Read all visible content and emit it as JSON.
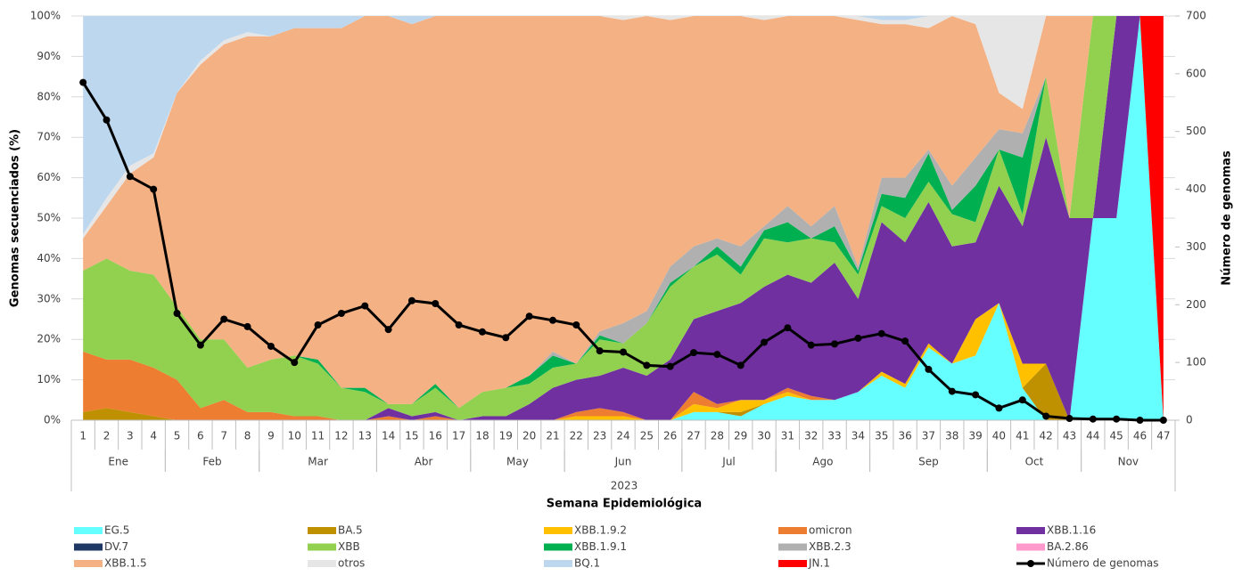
{
  "chart_data": {
    "type": "stacked-area-line",
    "y_label": "Genomas secuenciados (%)",
    "y2_label": "Número de genomas",
    "x_label": "Semana Epidemiológica",
    "x_outer_group": "2023",
    "categories": [
      "1",
      "2",
      "3",
      "4",
      "5",
      "6",
      "7",
      "8",
      "9",
      "10",
      "11",
      "12",
      "13",
      "14",
      "15",
      "16",
      "17",
      "18",
      "19",
      "20",
      "21",
      "22",
      "23",
      "24",
      "25",
      "26",
      "27",
      "28",
      "29",
      "30",
      "31",
      "32",
      "33",
      "34",
      "35",
      "36",
      "37",
      "38",
      "39",
      "40",
      "41",
      "42",
      "43",
      "44",
      "45",
      "46",
      "47"
    ],
    "x_groups": [
      "Ene",
      null,
      null,
      null,
      "Feb",
      null,
      null,
      null,
      "Mar",
      null,
      null,
      null,
      null,
      "Abr",
      null,
      null,
      null,
      "May",
      null,
      null,
      null,
      "Jun",
      null,
      null,
      null,
      null,
      "Jul",
      null,
      null,
      null,
      "Ago",
      null,
      null,
      null,
      "Sep",
      null,
      null,
      null,
      null,
      "Oct",
      null,
      null,
      null,
      "Nov",
      null,
      null,
      null
    ],
    "ylim": [
      0,
      100
    ],
    "yticks": [
      {
        "value": 0,
        "label": "0%"
      },
      {
        "value": 10,
        "label": "10%"
      },
      {
        "value": 20,
        "label": "20%"
      },
      {
        "value": 30,
        "label": "30%"
      },
      {
        "value": 40,
        "label": "40%"
      },
      {
        "value": 50,
        "label": "50%"
      },
      {
        "value": 60,
        "label": "60%"
      },
      {
        "value": 70,
        "label": "70%"
      },
      {
        "value": 80,
        "label": "80%"
      },
      {
        "value": 90,
        "label": "90%"
      },
      {
        "value": 100,
        "label": "100%"
      }
    ],
    "y2lim": [
      0,
      700
    ],
    "y2ticks": [
      0,
      100,
      200,
      300,
      400,
      500,
      600,
      700
    ],
    "series": [
      {
        "name": "EG.5",
        "color": "#66ffff",
        "values": [
          0,
          0,
          0,
          0,
          0,
          0,
          0,
          0,
          0,
          0,
          0,
          0,
          0,
          0,
          0,
          0,
          0,
          0,
          0,
          0,
          0,
          0,
          0,
          0,
          0,
          0,
          2,
          2,
          1,
          4,
          6,
          5,
          5,
          7,
          11,
          8,
          18,
          14,
          16,
          29,
          8,
          0,
          0,
          50,
          50,
          100,
          0
        ]
      },
      {
        "name": "BA.5",
        "color": "#bf9000",
        "values": [
          2,
          3,
          2,
          1,
          0,
          0,
          0,
          0,
          0,
          0,
          0,
          0,
          0,
          0,
          0,
          0,
          0,
          0,
          0,
          0,
          0,
          0,
          0,
          0,
          0,
          0,
          0,
          0,
          1,
          0,
          0,
          0,
          0,
          0,
          0,
          0,
          0,
          0,
          0,
          0,
          0,
          14,
          0,
          0,
          0,
          0,
          0
        ]
      },
      {
        "name": "XBB.1.9.2",
        "color": "#ffc000",
        "values": [
          0,
          0,
          0,
          0,
          0,
          0,
          0,
          0,
          0,
          0,
          0,
          0,
          0,
          0,
          0,
          0,
          0,
          0,
          0,
          0,
          0,
          1,
          1,
          1,
          0,
          0,
          2,
          1,
          3,
          1,
          1,
          0,
          0,
          0,
          1,
          1,
          1,
          0,
          9,
          0,
          6,
          0,
          0,
          0,
          0,
          0,
          0
        ]
      },
      {
        "name": "omicron",
        "color": "#ed7d31",
        "values": [
          15,
          12,
          13,
          12,
          10,
          3,
          5,
          2,
          2,
          1,
          1,
          0,
          0,
          1,
          0,
          1,
          0,
          0,
          0,
          0,
          0,
          1,
          2,
          1,
          0,
          0,
          3,
          1,
          0,
          0,
          1,
          1,
          0,
          0,
          0,
          0,
          0,
          0,
          0,
          0,
          0,
          0,
          0,
          0,
          0,
          0,
          0
        ]
      },
      {
        "name": "XBB.1.16",
        "color": "#7030a0",
        "values": [
          0,
          0,
          0,
          0,
          0,
          0,
          0,
          0,
          0,
          0,
          0,
          0,
          0,
          2,
          1,
          1,
          0,
          1,
          1,
          4,
          8,
          8,
          8,
          11,
          11,
          15,
          18,
          23,
          24,
          28,
          28,
          28,
          34,
          23,
          37,
          35,
          35,
          29,
          19,
          29,
          34,
          56,
          50,
          0,
          50,
          0,
          0
        ]
      },
      {
        "name": "DV.7",
        "color": "#1f3864",
        "values": [
          0,
          0,
          0,
          0,
          0,
          0,
          0,
          0,
          0,
          0,
          0,
          0,
          0,
          0,
          0,
          0,
          0,
          0,
          0,
          0,
          0,
          0,
          0,
          0,
          0,
          0,
          0,
          0,
          0,
          0,
          0,
          0,
          0,
          0,
          0,
          0,
          0,
          0,
          0,
          0,
          0,
          0,
          0,
          0,
          0,
          0,
          0
        ]
      },
      {
        "name": "XBB",
        "color": "#92d050",
        "values": [
          20,
          25,
          22,
          23,
          18,
          17,
          15,
          11,
          13,
          15,
          13,
          8,
          7,
          1,
          3,
          6,
          3,
          6,
          7,
          5,
          5,
          4,
          9,
          6,
          13,
          18,
          13,
          14,
          7,
          12,
          8,
          11,
          5,
          6,
          4,
          6,
          5,
          8,
          5,
          9,
          3,
          15,
          0,
          50,
          0,
          0,
          0
        ]
      },
      {
        "name": "XBB.1.9.1",
        "color": "#00b050",
        "values": [
          0,
          0,
          0,
          0,
          0,
          0,
          0,
          0,
          0,
          0,
          1,
          0,
          1,
          0,
          0,
          1,
          0,
          0,
          0,
          2,
          3,
          0,
          1,
          0,
          0,
          1,
          0,
          2,
          2,
          2,
          5,
          0,
          4,
          1,
          3,
          5,
          7,
          1,
          9,
          0,
          14,
          0,
          0,
          0,
          0,
          0,
          0
        ]
      },
      {
        "name": "XBB.2.3",
        "color": "#b0b0b0",
        "values": [
          0,
          0,
          0,
          0,
          0,
          0,
          0,
          0,
          0,
          0,
          0,
          0,
          0,
          0,
          0,
          0,
          0,
          0,
          0,
          0,
          1,
          0,
          1,
          5,
          3,
          4,
          5,
          2,
          5,
          1,
          4,
          3,
          5,
          1,
          4,
          5,
          1,
          6,
          7,
          5,
          6,
          0,
          0,
          0,
          0,
          0,
          0
        ]
      },
      {
        "name": "BA.2.86",
        "color": "#ff99cc",
        "values": [
          0,
          0,
          0,
          0,
          0,
          0,
          0,
          0,
          0,
          0,
          0,
          0,
          0,
          0,
          0,
          0,
          0,
          0,
          0,
          0,
          0,
          0,
          0,
          0,
          0,
          0,
          0,
          0,
          0,
          0,
          0,
          0,
          0,
          0,
          0,
          0,
          0,
          0,
          0,
          0,
          0,
          0,
          0,
          0,
          0,
          0,
          0
        ]
      },
      {
        "name": "XBB.1.5",
        "color": "#f4b183",
        "values": [
          8,
          13,
          24,
          29,
          53,
          68,
          73,
          82,
          80,
          81,
          82,
          89,
          92,
          96,
          94,
          91,
          97,
          93,
          92,
          89,
          83,
          86,
          78,
          75,
          73,
          61,
          57,
          55,
          57,
          51,
          47,
          52,
          47,
          61,
          38,
          38,
          30,
          42,
          33,
          9,
          6,
          15,
          50,
          0,
          0,
          0,
          0
        ]
      },
      {
        "name": "otros",
        "color": "#e7e6e6",
        "values": [
          1,
          2,
          2,
          1,
          0,
          1,
          1,
          1,
          0,
          0,
          0,
          0,
          0,
          0,
          0,
          0,
          0,
          0,
          0,
          0,
          0,
          0,
          0,
          1,
          0,
          1,
          0,
          0,
          0,
          1,
          0,
          0,
          0,
          1,
          1,
          1,
          3,
          0,
          2,
          19,
          23,
          0,
          0,
          0,
          0,
          0,
          0
        ]
      },
      {
        "name": "BQ.1",
        "color": "#bdd7ee",
        "values": [
          54,
          45,
          37,
          34,
          19,
          11,
          6,
          4,
          5,
          3,
          3,
          3,
          0,
          0,
          2,
          0,
          0,
          0,
          0,
          0,
          0,
          0,
          0,
          0,
          0,
          0,
          0,
          0,
          0,
          0,
          0,
          0,
          0,
          0,
          1,
          1,
          0,
          0,
          0,
          0,
          0,
          0,
          0,
          0,
          0,
          0,
          0
        ]
      },
      {
        "name": "JN.1",
        "color": "#ff0000",
        "values": [
          0,
          0,
          0,
          0,
          0,
          0,
          0,
          0,
          0,
          0,
          0,
          0,
          0,
          0,
          0,
          0,
          0,
          0,
          0,
          0,
          0,
          0,
          0,
          0,
          0,
          0,
          0,
          0,
          0,
          0,
          0,
          0,
          0,
          0,
          0,
          0,
          0,
          0,
          0,
          0,
          0,
          0,
          0,
          0,
          0,
          0,
          100
        ]
      },
      {
        "name": "Número de genomas",
        "color": "#000000",
        "axis": "y2",
        "values": [
          585,
          520,
          422,
          400,
          185,
          130,
          175,
          162,
          128,
          100,
          165,
          185,
          198,
          157,
          207,
          202,
          165,
          153,
          143,
          180,
          173,
          165,
          120,
          118,
          95,
          93,
          117,
          114,
          95,
          135,
          160,
          130,
          132,
          142,
          150,
          137,
          88,
          50,
          44,
          21,
          35,
          7,
          3,
          2,
          2,
          0,
          0
        ]
      }
    ]
  }
}
